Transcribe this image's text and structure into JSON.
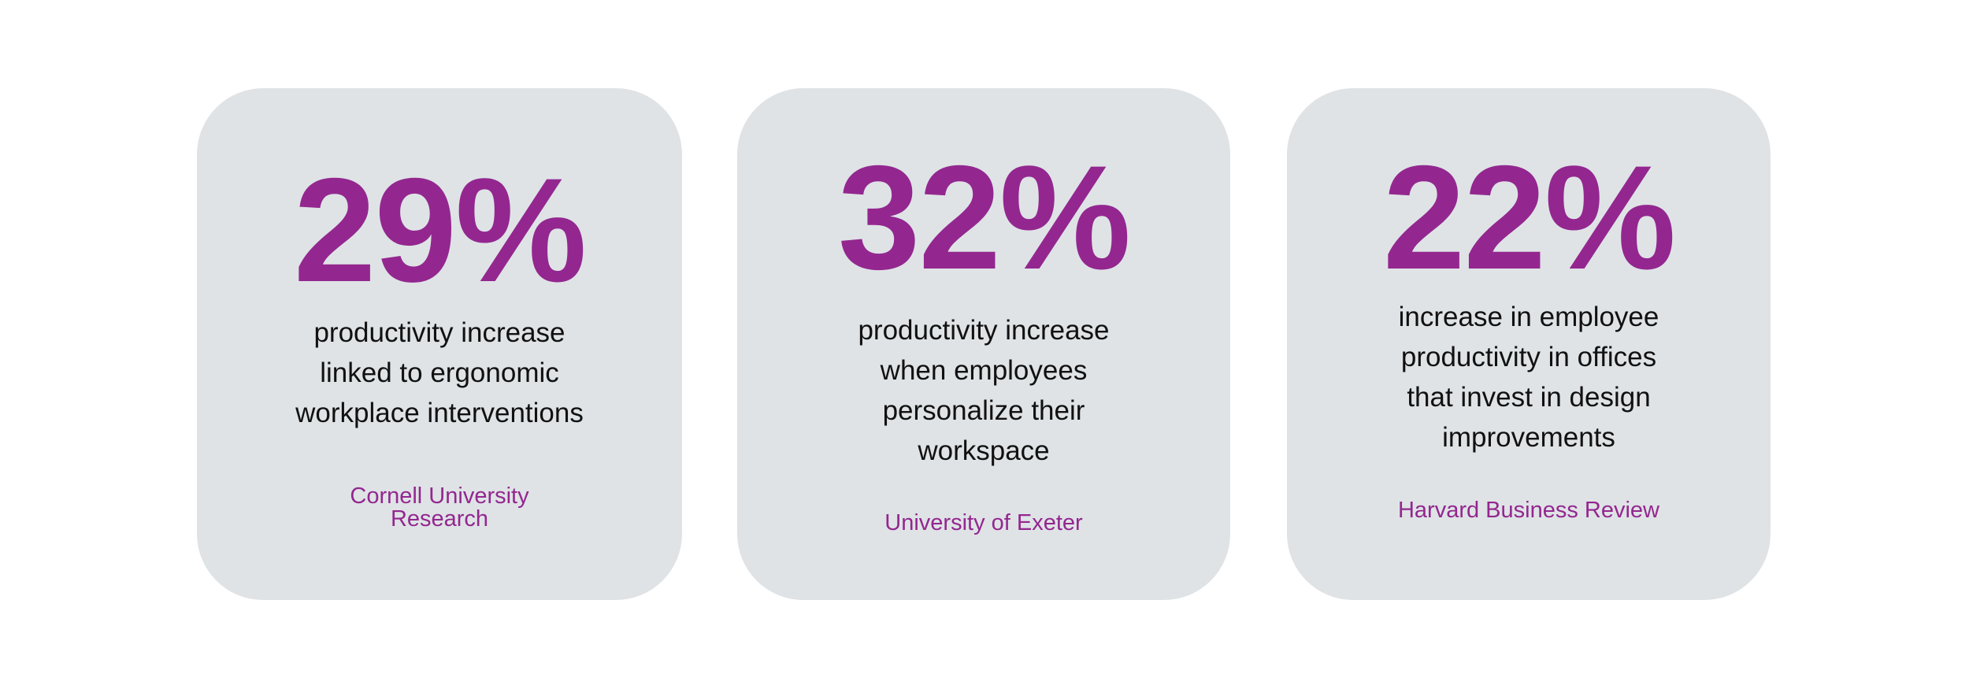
{
  "cards": [
    {
      "stat": "29%",
      "description": [
        "productivity increase",
        "linked to ergonomic",
        "workplace interventions"
      ],
      "source": [
        "Cornell University",
        "Research"
      ]
    },
    {
      "stat": "32%",
      "description": [
        "productivity increase",
        "when employees",
        "personalize their",
        "workspace"
      ],
      "source": [
        "University of Exeter"
      ]
    },
    {
      "stat": "22%",
      "description": [
        "increase in employee",
        "productivity in offices",
        "that invest in design",
        "improvements"
      ],
      "source": [
        "Harvard Business Review"
      ]
    }
  ]
}
